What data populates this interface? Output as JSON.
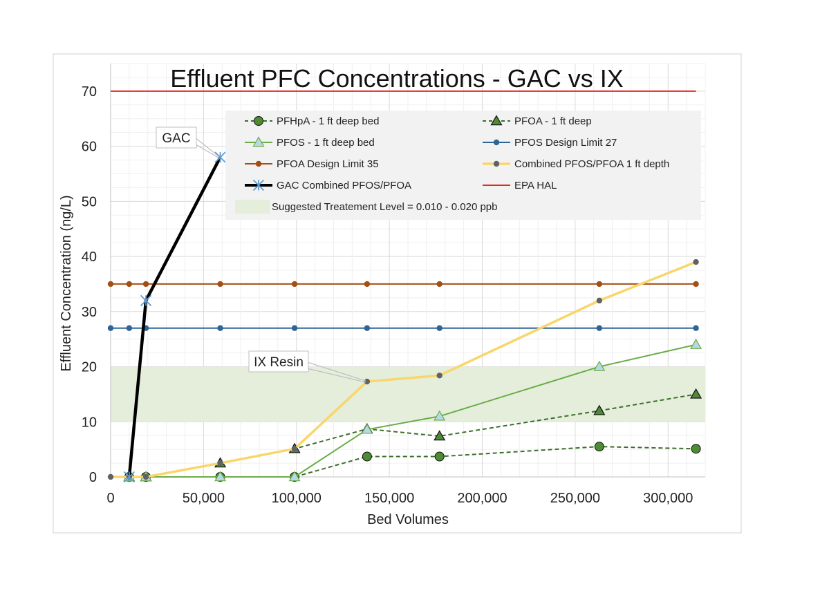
{
  "chart_data": {
    "type": "line",
    "title": "Effluent PFC Concentrations - GAC vs IX",
    "xlabel": "Bed Volumes",
    "ylabel": "Effluent Concentration (ng/L)",
    "xlim": [
      0,
      320000
    ],
    "ylim": [
      0,
      75
    ],
    "x_ticks": [
      0,
      50000,
      100000,
      150000,
      200000,
      250000,
      300000
    ],
    "x_tick_labels": [
      "0",
      "50,000",
      "100,000",
      "150,000",
      "200,000",
      "250,000",
      "300,000"
    ],
    "y_ticks": [
      0,
      10,
      20,
      30,
      40,
      50,
      60,
      70
    ],
    "y_tick_labels": [
      "0",
      "10",
      "20",
      "30",
      "40",
      "50",
      "60",
      "70"
    ],
    "grid": true,
    "legend_position": "top-right",
    "band": {
      "name": "Suggested Treatement Level = 0.010 - 0.020 ppb",
      "y_range": [
        10,
        20
      ],
      "color": "#e4eedb"
    },
    "series": [
      {
        "name": "PFHpA - 1 ft deep bed",
        "color": "#3b6e2a",
        "fill": "#4f8a35",
        "marker": "circle",
        "dash": true,
        "points": [
          [
            10000,
            0
          ],
          [
            19000,
            0
          ],
          [
            59000,
            0
          ],
          [
            99000,
            0
          ],
          [
            138000,
            3.7
          ],
          [
            177000,
            3.7
          ],
          [
            263000,
            5.5
          ],
          [
            315000,
            5.1
          ]
        ]
      },
      {
        "name": "PFOA - 1 ft deep",
        "color": "#3b6e2a",
        "fill": "#4f8a35",
        "marker": "triangle",
        "dash": true,
        "points": [
          [
            10000,
            0
          ],
          [
            19000,
            0
          ],
          [
            59000,
            2.5
          ],
          [
            99000,
            5.1
          ],
          [
            138000,
            8.7
          ],
          [
            177000,
            7.4
          ],
          [
            263000,
            12
          ],
          [
            315000,
            15
          ]
        ]
      },
      {
        "name": "PFOS - 1 ft deep bed",
        "color": "#6aac47",
        "fill": "#b7d8e6",
        "marker": "triangle",
        "dash": false,
        "points": [
          [
            10000,
            0
          ],
          [
            19000,
            0
          ],
          [
            59000,
            0
          ],
          [
            99000,
            0
          ],
          [
            138000,
            8.6
          ],
          [
            177000,
            11
          ],
          [
            263000,
            20
          ],
          [
            315000,
            24
          ]
        ]
      },
      {
        "name": "PFOS Design Limit 27",
        "color": "#2e6496",
        "fill": "#2e6496",
        "marker": "small-circle",
        "dash": false,
        "points": [
          [
            0,
            27
          ],
          [
            10000,
            27
          ],
          [
            19000,
            27
          ],
          [
            59000,
            27
          ],
          [
            99000,
            27
          ],
          [
            138000,
            27
          ],
          [
            177000,
            27
          ],
          [
            263000,
            27
          ],
          [
            315000,
            27
          ]
        ]
      },
      {
        "name": "PFOA Design Limit 35",
        "color": "#a24e14",
        "fill": "#a24e14",
        "marker": "small-circle",
        "dash": false,
        "points": [
          [
            0,
            35
          ],
          [
            10000,
            35
          ],
          [
            19000,
            35
          ],
          [
            59000,
            35
          ],
          [
            99000,
            35
          ],
          [
            138000,
            35
          ],
          [
            177000,
            35
          ],
          [
            263000,
            35
          ],
          [
            315000,
            35
          ]
        ]
      },
      {
        "name": "Combined PFOS/PFOA 1 ft depth",
        "color": "#f9d66b",
        "fill": "#5f6368",
        "marker": "small-circle",
        "dash": false,
        "width": 3.5,
        "points": [
          [
            0,
            0
          ],
          [
            10000,
            0
          ],
          [
            19000,
            0
          ],
          [
            59000,
            2.5
          ],
          [
            99000,
            5.1
          ],
          [
            138000,
            17.3
          ],
          [
            177000,
            18.4
          ],
          [
            263000,
            32
          ],
          [
            315000,
            39
          ]
        ]
      },
      {
        "name": "GAC Combined PFOS/PFOA",
        "color": "#000000",
        "fill": "#5b9bd5",
        "marker": "star",
        "dash": false,
        "width": 4.5,
        "points": [
          [
            10000,
            0
          ],
          [
            19000,
            32
          ],
          [
            59000,
            58
          ]
        ]
      },
      {
        "name": "EPA HAL",
        "color": "#e02b20",
        "fill": "#e02b20",
        "marker": "none",
        "dash": false,
        "points": [
          [
            0,
            70
          ],
          [
            315000,
            70
          ]
        ]
      }
    ],
    "annotations": [
      {
        "text": "GAC",
        "anchor": [
          59000,
          58
        ]
      },
      {
        "text": "IX Resin",
        "anchor": [
          138000,
          17.3
        ]
      }
    ]
  }
}
